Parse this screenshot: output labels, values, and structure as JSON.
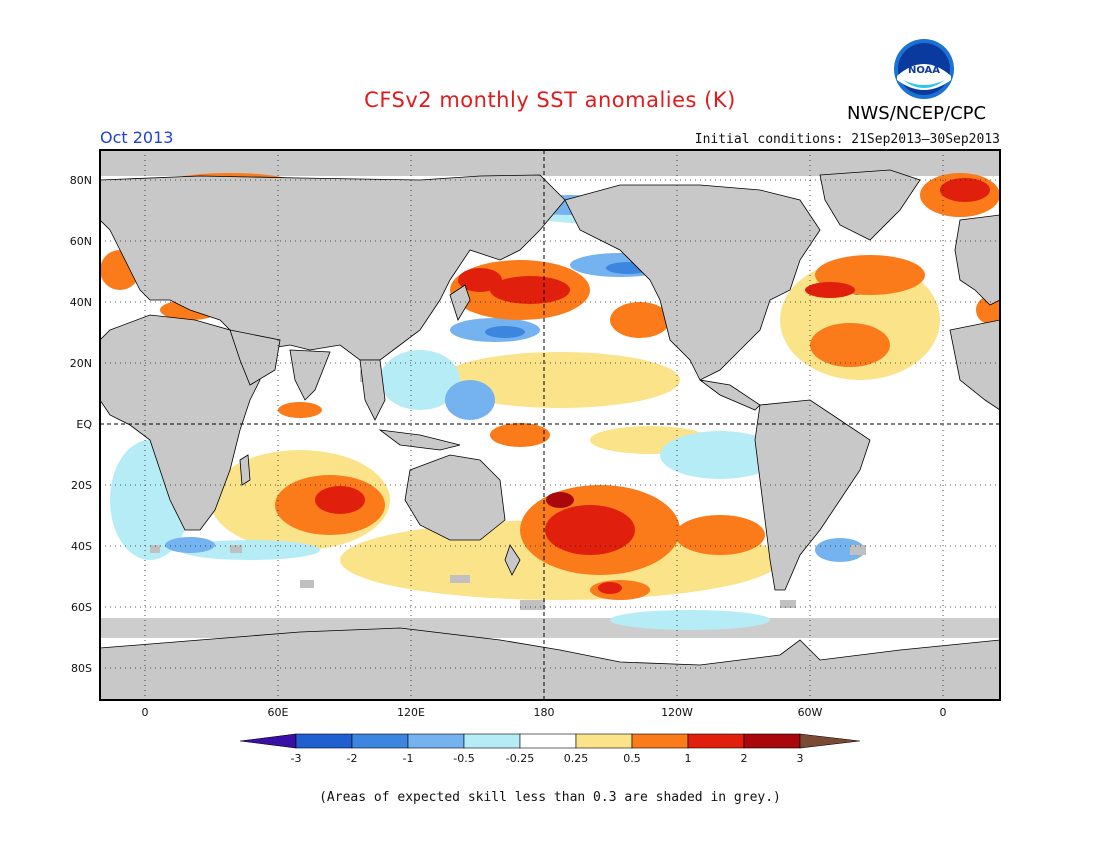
{
  "header": {
    "title": "CFSv2 monthly SST anomalies (K)",
    "month": "Oct 2013",
    "initial_conditions": "Initial conditions: 21Sep2013–30Sep2013",
    "agency": "NWS/NCEP/CPC",
    "logo_text": "NOAA"
  },
  "map": {
    "lat_labels": [
      "80N",
      "60N",
      "40N",
      "20N",
      "EQ",
      "20S",
      "40S",
      "60S",
      "80S"
    ],
    "lon_labels": [
      "0",
      "60E",
      "120E",
      "180",
      "120W",
      "60W",
      "0"
    ],
    "projection": "cylindrical equidistant, centered on 180",
    "land_color": "#c8c8c8",
    "low_skill_color": "#c0c0c0"
  },
  "colorbar": {
    "tick_labels": [
      "-3",
      "-2",
      "-1",
      "-0.5",
      "-0.25",
      "0.25",
      "0.5",
      "1",
      "2",
      "3"
    ],
    "colors": [
      "#3a0fa5",
      "#1f5fcf",
      "#3c86e0",
      "#74b2f0",
      "#b6ecf6",
      "#ffffff",
      "#fbe38a",
      "#fb7a1a",
      "#e0200c",
      "#a8070b",
      "#7b4a35"
    ]
  },
  "footnote": "(Areas of expected skill less than 0.3 are shaded in grey.)"
}
